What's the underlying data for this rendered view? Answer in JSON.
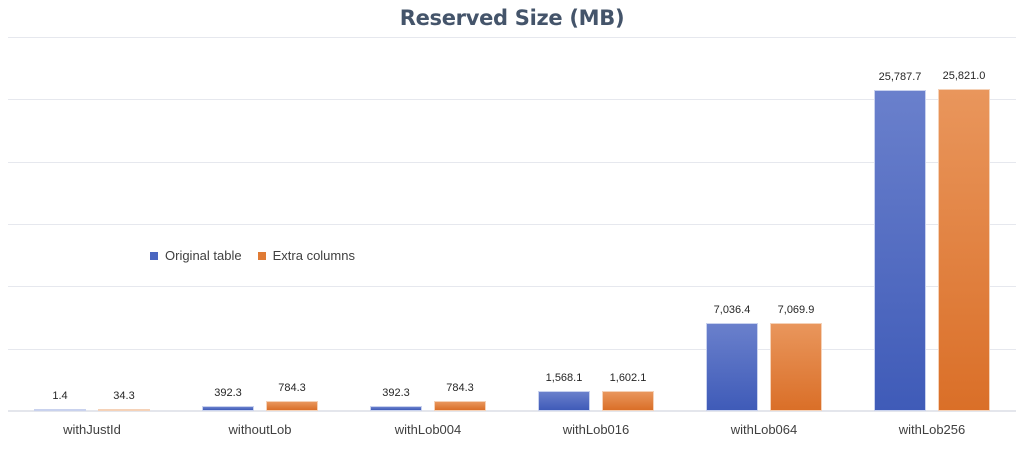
{
  "chart_data": {
    "type": "bar",
    "title": "Reserved Size (MB)",
    "xlabel": "",
    "ylabel": "",
    "categories": [
      "withJustId",
      "withoutLob",
      "withLob004",
      "withLob016",
      "withLob064",
      "withLob256"
    ],
    "series": [
      {
        "name": "Original table",
        "color": "#4a66c0",
        "values": [
          1.4,
          392.3,
          392.3,
          1568.1,
          7036.4,
          25787.7
        ],
        "labels": [
          "1.4",
          "392.3",
          "392.3",
          "1,568.1",
          "7,036.4",
          "25,787.7"
        ]
      },
      {
        "name": "Extra columns",
        "color": "#e07b35",
        "values": [
          34.3,
          784.3,
          784.3,
          1602.1,
          7069.9,
          25821.0
        ],
        "labels": [
          "34.3",
          "784.3",
          "784.3",
          "1,602.1",
          "7,069.9",
          "25,821.0"
        ]
      }
    ],
    "ylim": [
      0,
      30000
    ],
    "ytick_step": 5000,
    "grid": true,
    "y_axis_labels_visible": false,
    "legend_position": "inside-left"
  },
  "legend": {
    "items": [
      {
        "label": "Original table",
        "color": "#4a66c0"
      },
      {
        "label": "Extra columns",
        "color": "#e07b35"
      }
    ]
  }
}
